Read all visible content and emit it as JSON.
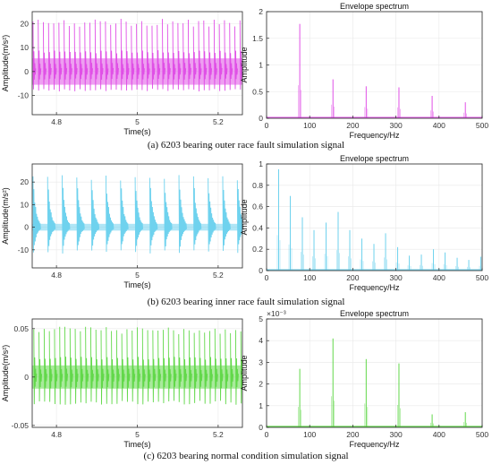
{
  "captions": [
    "(a) 6203 bearing outer race fault simulation signal",
    "(b) 6203 bearing inner race fault simulation signal",
    "(c) 6203 bearing normal condition simulation signal"
  ],
  "colors": {
    "outer_race": "#e050e6",
    "inner_race": "#6fd2ee",
    "normal": "#62d84a",
    "axis": "#262626",
    "grid": "#e8e8e8"
  },
  "chart_data": [
    {
      "type": "line",
      "panel": "a-time",
      "xlabel": "Time(s)",
      "ylabel": "Amplitude(m/s²)",
      "xlim": [
        4.74,
        5.26
      ],
      "ylim": [
        -18,
        25
      ],
      "xticks": [
        4.8,
        5,
        5.2
      ],
      "yticks": [
        -10,
        0,
        10,
        20
      ],
      "impulse_period_s": 0.0128,
      "impulse_first_s": 4.742,
      "peak_positive": 22,
      "peak_negative": -13,
      "baseline_band": 5.5,
      "color": "#e050e6"
    },
    {
      "type": "line",
      "panel": "a-spectrum",
      "title": "Envelope spectrum",
      "xlabel": "Frequency/Hz",
      "ylabel": "Amplitude",
      "xlim": [
        0,
        500
      ],
      "ylim": [
        0,
        2
      ],
      "xticks": [
        0,
        100,
        200,
        300,
        400,
        500
      ],
      "yticks": [
        0,
        0.5,
        1,
        1.5,
        2
      ],
      "peaks": [
        {
          "x": 77,
          "y": 1.77
        },
        {
          "x": 154,
          "y": 0.73
        },
        {
          "x": 231,
          "y": 0.6
        },
        {
          "x": 307,
          "y": 0.58
        },
        {
          "x": 384,
          "y": 0.42
        },
        {
          "x": 461,
          "y": 0.3
        }
      ],
      "color": "#e050e6"
    },
    {
      "type": "line",
      "panel": "b-time",
      "xlabel": "Time(s)",
      "ylabel": "Amplitude(m/s²)",
      "xlim": [
        4.74,
        5.26
      ],
      "ylim": [
        -18,
        28
      ],
      "xticks": [
        4.8,
        5,
        5.2
      ],
      "yticks": [
        -10,
        0,
        10,
        20
      ],
      "impulse_period_s": 0.0361,
      "impulse_first_s": 4.742,
      "peak_positive": 24,
      "peak_negative": -14,
      "baseline_band": 1.5,
      "color": "#6fd2ee"
    },
    {
      "type": "line",
      "panel": "b-spectrum",
      "title": "Envelope spectrum",
      "xlabel": "Frequency/Hz",
      "ylabel": "Amplitude",
      "xlim": [
        0,
        500
      ],
      "ylim": [
        0,
        1
      ],
      "xticks": [
        0,
        100,
        200,
        300,
        400,
        500
      ],
      "yticks": [
        0,
        0.2,
        0.4,
        0.6,
        0.8,
        1
      ],
      "peaks": [
        {
          "x": 28,
          "y": 0.95
        },
        {
          "x": 55,
          "y": 0.7
        },
        {
          "x": 83,
          "y": 0.5
        },
        {
          "x": 110,
          "y": 0.38
        },
        {
          "x": 138,
          "y": 0.45
        },
        {
          "x": 166,
          "y": 0.55
        },
        {
          "x": 193,
          "y": 0.38
        },
        {
          "x": 221,
          "y": 0.3
        },
        {
          "x": 249,
          "y": 0.25
        },
        {
          "x": 276,
          "y": 0.35
        },
        {
          "x": 304,
          "y": 0.22
        },
        {
          "x": 331,
          "y": 0.14
        },
        {
          "x": 359,
          "y": 0.15
        },
        {
          "x": 387,
          "y": 0.2
        },
        {
          "x": 414,
          "y": 0.17
        },
        {
          "x": 442,
          "y": 0.12
        },
        {
          "x": 469,
          "y": 0.1
        },
        {
          "x": 497,
          "y": 0.13
        }
      ],
      "color": "#6fd2ee"
    },
    {
      "type": "line",
      "panel": "c-time",
      "xlabel": "Time(s)",
      "ylabel": "Amplitude(m/s²)",
      "xlim": [
        4.74,
        5.26
      ],
      "ylim": [
        -0.052,
        0.06
      ],
      "xticks": [
        4.8,
        5,
        5.2
      ],
      "yticks": [
        -0.05,
        0,
        0.05
      ],
      "impulse_period_s": 0.0128,
      "impulse_first_s": 4.744,
      "peak_positive": 0.052,
      "peak_negative": -0.045,
      "baseline_band": 0.012,
      "color": "#62d84a"
    },
    {
      "type": "line",
      "panel": "c-spectrum",
      "title": "Envelope spectrum",
      "exponent_label": "×10⁻³",
      "xlabel": "Frequency/Hz",
      "ylabel": "Amplitude",
      "xlim": [
        0,
        500
      ],
      "ylim": [
        0,
        5
      ],
      "xticks": [
        0,
        100,
        200,
        300,
        400,
        500
      ],
      "yticks": [
        0,
        1,
        2,
        3,
        4,
        5
      ],
      "peaks": [
        {
          "x": 77,
          "y": 2.7
        },
        {
          "x": 154,
          "y": 4.1
        },
        {
          "x": 231,
          "y": 3.15
        },
        {
          "x": 307,
          "y": 2.95
        },
        {
          "x": 384,
          "y": 0.6
        },
        {
          "x": 461,
          "y": 0.7
        }
      ],
      "color": "#62d84a"
    }
  ]
}
